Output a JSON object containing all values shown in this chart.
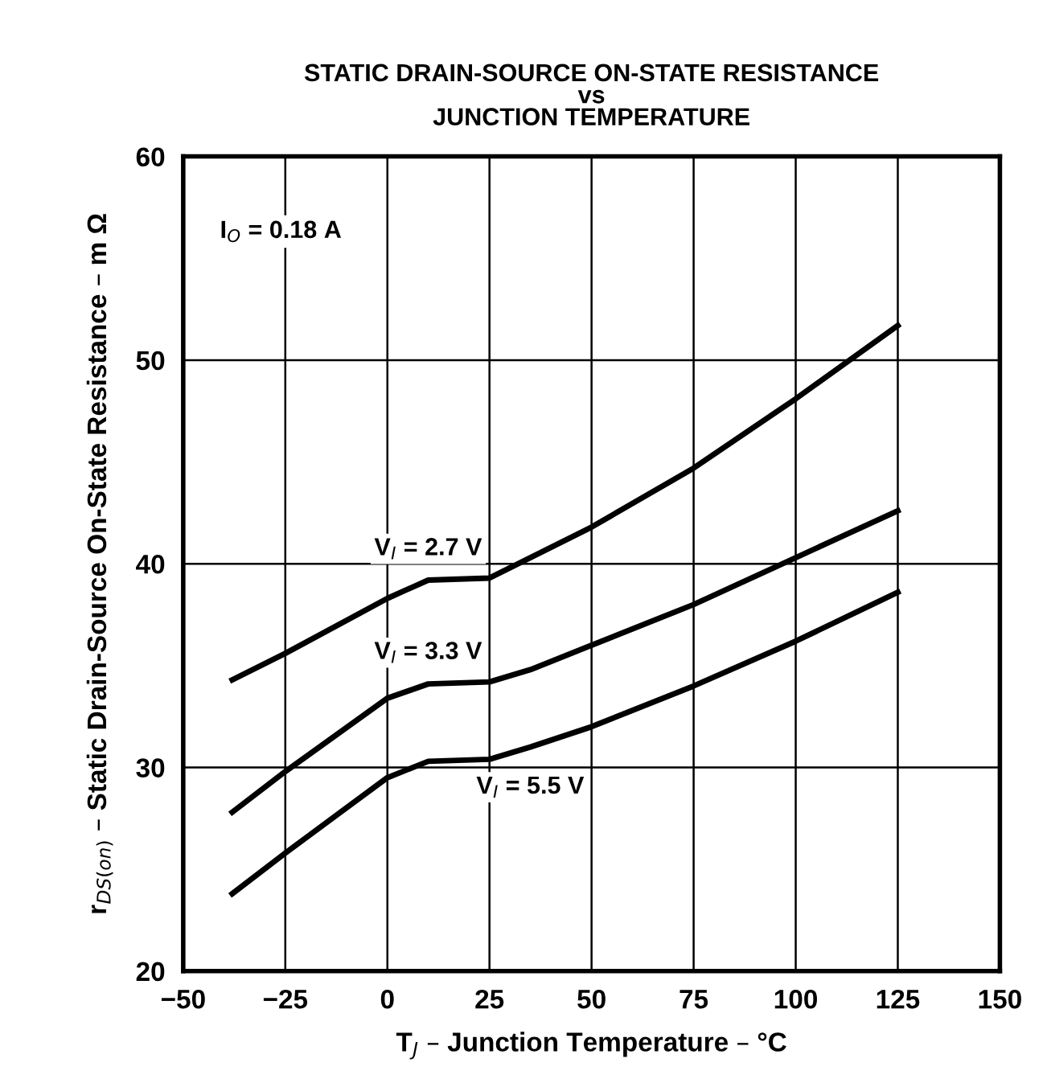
{
  "chart_data": {
    "type": "line",
    "title": "STATIC DRAIN-SOURCE ON-STATE RESISTANCE\nvs\nJUNCTION TEMPERATURE",
    "xlabel": "T$_{J}$ – Junction Temperature – °C",
    "ylabel": "r$_{DS(on)}$ – Static Drain-Source On-State Resistance – m Ω",
    "annotations": [
      "I$_{O}$ = 0.18 A"
    ],
    "x": [
      -38,
      -25,
      0,
      10,
      25,
      35,
      50,
      75,
      100,
      125
    ],
    "series": [
      {
        "name": "V$_{I}$ = 2.7 V",
        "color": "#000000",
        "values": [
          34.3,
          35.6,
          38.3,
          39.2,
          39.3,
          40.3,
          41.8,
          44.7,
          48.1,
          51.7
        ]
      },
      {
        "name": "V$_{I}$ = 3.3 V",
        "color": "#000000",
        "values": [
          27.8,
          29.8,
          33.4,
          34.1,
          34.2,
          34.8,
          36.0,
          38.0,
          40.3,
          42.6
        ]
      },
      {
        "name": "V$_{I}$ = 5.5 V",
        "color": "#000000",
        "values": [
          23.8,
          25.8,
          29.5,
          30.3,
          30.4,
          31.0,
          32.0,
          34.0,
          36.2,
          38.6
        ]
      }
    ],
    "xlim": [
      -50,
      150
    ],
    "xticks": [
      -50,
      -25,
      0,
      25,
      50,
      75,
      100,
      125,
      150
    ],
    "ylim": [
      20,
      60
    ],
    "yticks": [
      20,
      30,
      40,
      50,
      60
    ],
    "grid": true,
    "legend": false,
    "marker": "none",
    "line_style": "solid"
  }
}
